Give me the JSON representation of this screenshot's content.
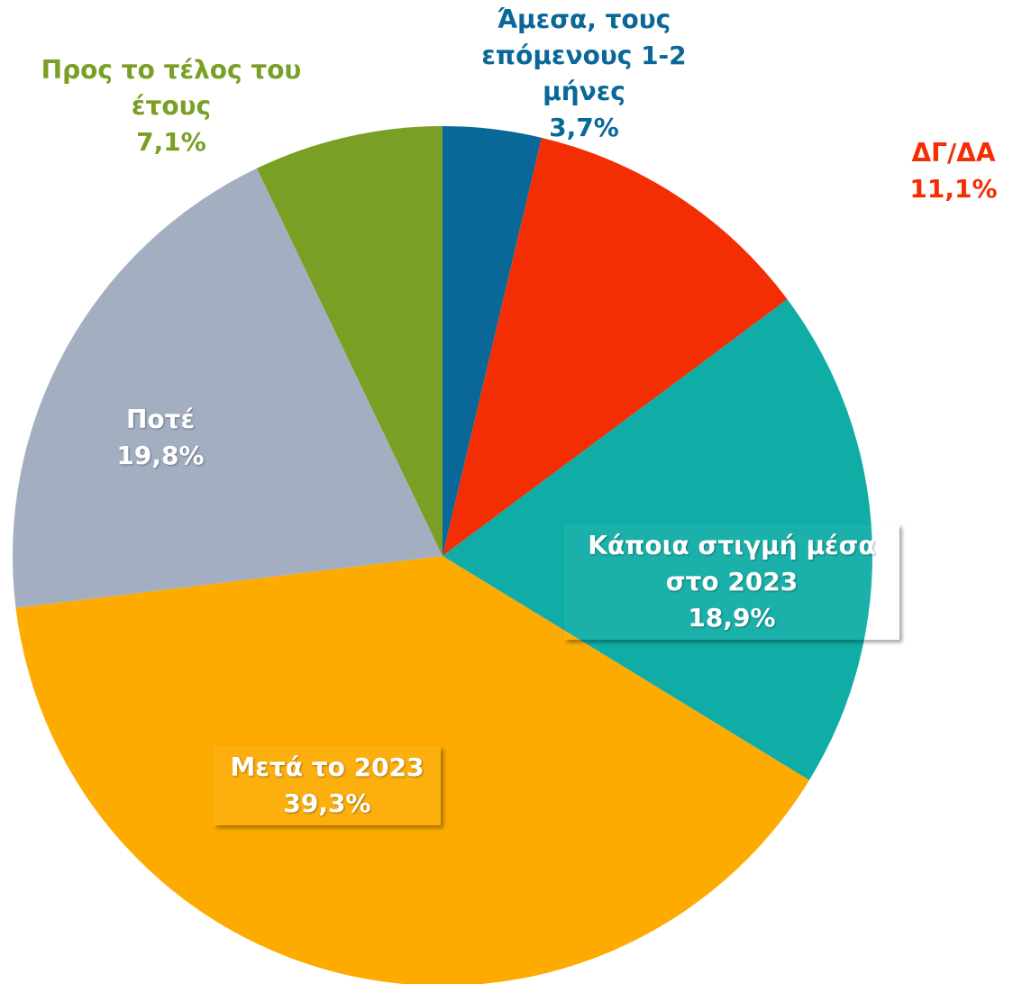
{
  "chart_data": {
    "type": "pie",
    "categories": [
      "Άμεσα, τους επόμενους 1-2 μήνες",
      "ΔΓ/ΔΑ",
      "Κάποια στιγμή μέσα στο 2023",
      "Μετά το 2023",
      "Ποτέ",
      "Προς το τέλος του έτους"
    ],
    "values": [
      3.7,
      11.1,
      18.9,
      39.3,
      19.8,
      7.1
    ],
    "value_labels": [
      "3,7%",
      "11,1%",
      "18,9%",
      "39,3%",
      "19,8%",
      "7,1%"
    ],
    "colors": [
      "#0a6898",
      "#f32e05",
      "#0fada6",
      "#fdab00",
      "#a3afc1",
      "#79a025"
    ]
  }
}
